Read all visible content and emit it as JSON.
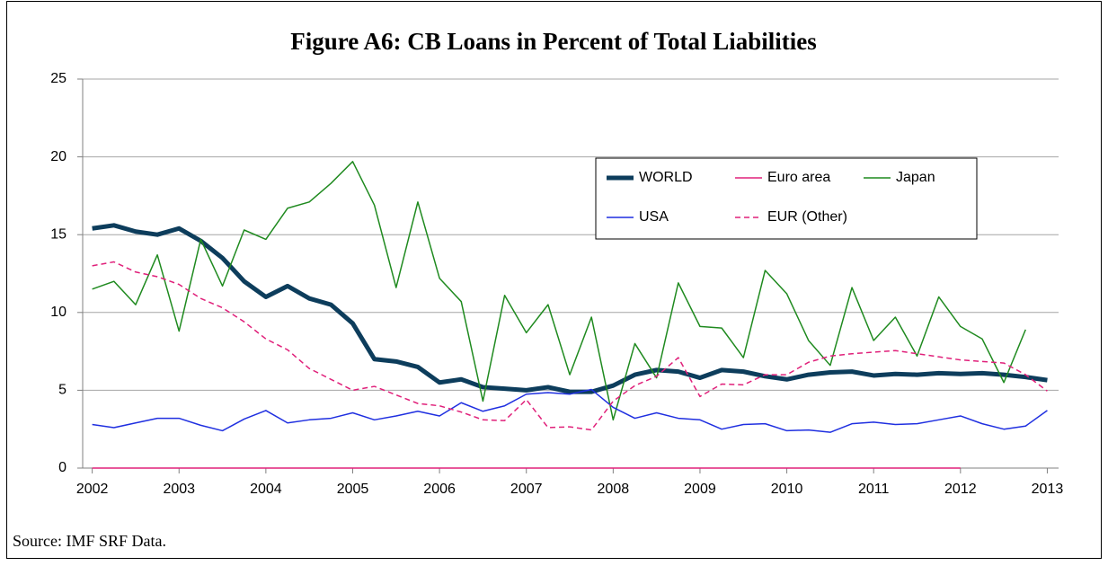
{
  "chart_data": {
    "type": "line",
    "title": "Figure A6: CB Loans in Percent of Total Liabilities",
    "source": "Source: IMF SRF Data.",
    "x": [
      2002,
      2002.25,
      2002.5,
      2002.75,
      2003,
      2003.25,
      2003.5,
      2003.75,
      2004,
      2004.25,
      2004.5,
      2004.75,
      2005,
      2005.25,
      2005.5,
      2005.75,
      2006,
      2006.25,
      2006.5,
      2006.75,
      2007,
      2007.25,
      2007.5,
      2007.75,
      2008,
      2008.25,
      2008.5,
      2008.75,
      2009,
      2009.25,
      2009.5,
      2009.75,
      2010,
      2010.25,
      2010.5,
      2010.75,
      2011,
      2011.25,
      2011.5,
      2011.75,
      2012,
      2012.25,
      2012.5,
      2012.75,
      2013
    ],
    "series": [
      {
        "name": "WORLD",
        "color": "#0d3d5c",
        "width": 5,
        "dashed": false,
        "values": [
          15.4,
          15.6,
          15.2,
          15.0,
          15.4,
          14.6,
          13.5,
          12.0,
          11.0,
          11.7,
          10.9,
          10.5,
          9.3,
          7.0,
          6.85,
          6.5,
          5.5,
          5.7,
          5.2,
          5.1,
          5.0,
          5.2,
          4.9,
          4.9,
          5.3,
          6.0,
          6.3,
          6.2,
          5.8,
          6.3,
          6.2,
          5.9,
          5.7,
          6.0,
          6.15,
          6.2,
          5.95,
          6.05,
          6.0,
          6.1,
          6.05,
          6.1,
          6.0,
          5.85,
          5.65
        ]
      },
      {
        "name": "Euro area",
        "color": "#e0207a",
        "width": 1.5,
        "dashed": false,
        "values": [
          0,
          0,
          0,
          0,
          0,
          0,
          0,
          0,
          0,
          0,
          0,
          0,
          0,
          0,
          0,
          0,
          0,
          0,
          0,
          0,
          0,
          0,
          0,
          0,
          0,
          0,
          0,
          0,
          0,
          0,
          0,
          0,
          0,
          0,
          0,
          0,
          0,
          0,
          0,
          0,
          0,
          null,
          null,
          null,
          null
        ]
      },
      {
        "name": "Japan",
        "color": "#1f8a1f",
        "width": 1.5,
        "dashed": false,
        "values": [
          11.5,
          12.0,
          10.5,
          13.7,
          8.8,
          14.7,
          11.7,
          15.3,
          14.7,
          16.7,
          17.1,
          18.3,
          19.7,
          16.9,
          11.6,
          17.1,
          12.2,
          10.7,
          4.3,
          11.1,
          8.7,
          10.5,
          6.0,
          9.7,
          3.1,
          8.0,
          5.8,
          11.9,
          9.1,
          9.0,
          7.1,
          12.7,
          11.2,
          8.2,
          6.6,
          11.6,
          8.2,
          9.7,
          7.2,
          11.0,
          9.1,
          8.3,
          5.5,
          8.9,
          null
        ]
      },
      {
        "name": "USA",
        "color": "#1f2fe0",
        "width": 1.5,
        "dashed": false,
        "values": [
          2.8,
          2.6,
          2.9,
          3.2,
          3.2,
          2.75,
          2.4,
          3.15,
          3.7,
          2.9,
          3.1,
          3.2,
          3.55,
          3.1,
          3.35,
          3.65,
          3.35,
          4.2,
          3.65,
          4.0,
          4.75,
          4.85,
          4.75,
          5.05,
          3.9,
          3.2,
          3.55,
          3.2,
          3.1,
          2.5,
          2.8,
          2.85,
          2.4,
          2.45,
          2.3,
          2.85,
          2.95,
          2.8,
          2.85,
          3.1,
          3.35,
          2.85,
          2.5,
          2.7,
          3.7
        ]
      },
      {
        "name": "EUR (Other)",
        "color": "#e0207a",
        "width": 1.5,
        "dashed": true,
        "values": [
          13.0,
          13.25,
          12.6,
          12.3,
          11.8,
          10.9,
          10.3,
          9.4,
          8.3,
          7.6,
          6.4,
          5.7,
          5.0,
          5.25,
          4.7,
          4.15,
          4.0,
          3.6,
          3.1,
          3.05,
          4.4,
          2.6,
          2.65,
          2.45,
          4.3,
          5.3,
          5.9,
          7.1,
          4.6,
          5.4,
          5.35,
          6.0,
          6.0,
          6.8,
          7.2,
          7.35,
          7.45,
          7.55,
          7.35,
          7.15,
          6.95,
          6.85,
          6.75,
          6.0,
          4.95
        ]
      }
    ],
    "xlim": [
      2001.89,
      2013.13
    ],
    "xticks": [
      2002,
      2003,
      2004,
      2005,
      2006,
      2007,
      2008,
      2009,
      2010,
      2011,
      2012,
      2013
    ],
    "ylim": [
      0,
      25
    ],
    "yticks": [
      0,
      5,
      10,
      15,
      20,
      25
    ],
    "grid": true
  }
}
